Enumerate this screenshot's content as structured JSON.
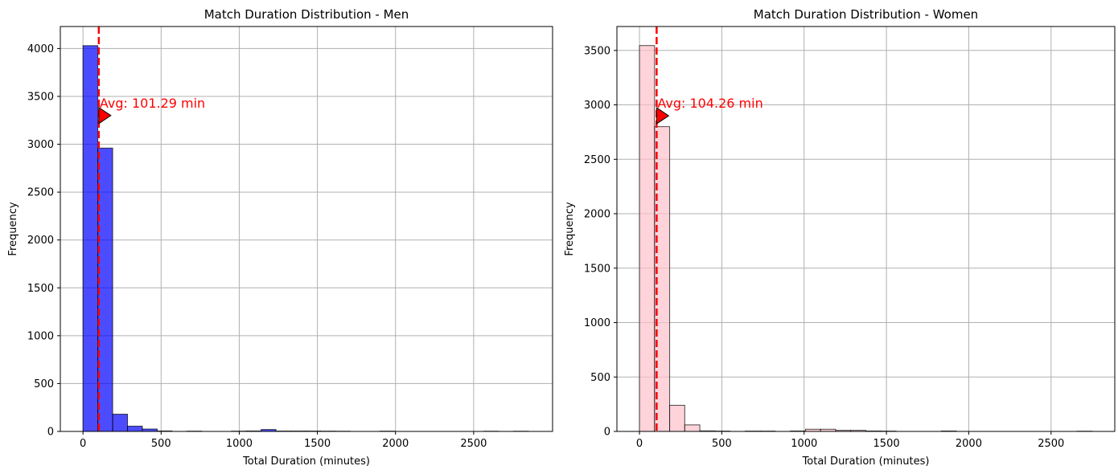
{
  "chart_data": [
    {
      "type": "bar",
      "title": "Match Duration Distribution - Men",
      "xlabel": "Total Duration (minutes)",
      "ylabel": "Frequency",
      "xlim": [
        -145,
        3005
      ],
      "ylim": [
        0,
        4230
      ],
      "xticks": [
        0,
        500,
        1000,
        1500,
        2000,
        2500
      ],
      "yticks": [
        0,
        500,
        1000,
        1500,
        2000,
        2500,
        3000,
        3500,
        4000
      ],
      "grid": true,
      "bar_color": "#0000ff",
      "bar_edge": "#000000",
      "bins": [
        {
          "x0": 0,
          "x1": 95,
          "count": 4030
        },
        {
          "x0": 95,
          "x1": 190,
          "count": 2960
        },
        {
          "x0": 190,
          "x1": 285,
          "count": 180
        },
        {
          "x0": 285,
          "x1": 380,
          "count": 55
        },
        {
          "x0": 380,
          "x1": 475,
          "count": 25
        },
        {
          "x0": 475,
          "x1": 570,
          "count": 5
        },
        {
          "x0": 570,
          "x1": 665,
          "count": 0
        },
        {
          "x0": 665,
          "x1": 760,
          "count": 3
        },
        {
          "x0": 760,
          "x1": 855,
          "count": 0
        },
        {
          "x0": 855,
          "x1": 950,
          "count": 0
        },
        {
          "x0": 950,
          "x1": 1045,
          "count": 3
        },
        {
          "x0": 1045,
          "x1": 1140,
          "count": 5
        },
        {
          "x0": 1140,
          "x1": 1235,
          "count": 20
        },
        {
          "x0": 1235,
          "x1": 1330,
          "count": 4
        },
        {
          "x0": 1330,
          "x1": 1425,
          "count": 4
        },
        {
          "x0": 1425,
          "x1": 1520,
          "count": 4
        },
        {
          "x0": 1520,
          "x1": 1615,
          "count": 3
        },
        {
          "x0": 1615,
          "x1": 1710,
          "count": 2
        },
        {
          "x0": 1710,
          "x1": 1805,
          "count": 0
        },
        {
          "x0": 1805,
          "x1": 1900,
          "count": 0
        },
        {
          "x0": 1900,
          "x1": 1995,
          "count": 3
        },
        {
          "x0": 1995,
          "x1": 2090,
          "count": 0
        },
        {
          "x0": 2090,
          "x1": 2185,
          "count": 0
        },
        {
          "x0": 2185,
          "x1": 2280,
          "count": 0
        },
        {
          "x0": 2280,
          "x1": 2375,
          "count": 0
        },
        {
          "x0": 2375,
          "x1": 2470,
          "count": 0
        },
        {
          "x0": 2470,
          "x1": 2565,
          "count": 0
        },
        {
          "x0": 2565,
          "x1": 2660,
          "count": 2
        },
        {
          "x0": 2660,
          "x1": 2755,
          "count": 0
        },
        {
          "x0": 2755,
          "x1": 2850,
          "count": 2
        }
      ],
      "avg_line": {
        "x": 101.29,
        "color": "#ff0000"
      },
      "annotation": {
        "text": "Avg: 101.29 min",
        "x": 101.29,
        "y": 3300,
        "color": "#ff0000"
      }
    },
    {
      "type": "bar",
      "title": "Match Duration Distribution - Women",
      "xlabel": "Total Duration (minutes)",
      "ylabel": "Frequency",
      "xlim": [
        -137,
        2887
      ],
      "ylim": [
        0,
        3720
      ],
      "xticks": [
        0,
        500,
        1000,
        1500,
        2000,
        2500
      ],
      "yticks": [
        0,
        500,
        1000,
        1500,
        2000,
        2500,
        3000,
        3500
      ],
      "grid": true,
      "bar_color": "#ffc0cb",
      "bar_edge": "#000000",
      "bins": [
        {
          "x0": 0,
          "x1": 91.7,
          "count": 3545
        },
        {
          "x0": 91.7,
          "x1": 183.3,
          "count": 2800
        },
        {
          "x0": 183.3,
          "x1": 275,
          "count": 240
        },
        {
          "x0": 275,
          "x1": 366.7,
          "count": 60
        },
        {
          "x0": 366.7,
          "x1": 458.3,
          "count": 5
        },
        {
          "x0": 458.3,
          "x1": 550,
          "count": 3
        },
        {
          "x0": 550,
          "x1": 641.7,
          "count": 0
        },
        {
          "x0": 641.7,
          "x1": 733.3,
          "count": 3
        },
        {
          "x0": 733.3,
          "x1": 825,
          "count": 3
        },
        {
          "x0": 825,
          "x1": 916.7,
          "count": 0
        },
        {
          "x0": 916.7,
          "x1": 1008.3,
          "count": 4
        },
        {
          "x0": 1008.3,
          "x1": 1100,
          "count": 20
        },
        {
          "x0": 1100,
          "x1": 1191.7,
          "count": 20
        },
        {
          "x0": 1191.7,
          "x1": 1283.3,
          "count": 10
        },
        {
          "x0": 1283.3,
          "x1": 1375,
          "count": 10
        },
        {
          "x0": 1375,
          "x1": 1466.7,
          "count": 4
        },
        {
          "x0": 1466.7,
          "x1": 1558.3,
          "count": 3
        },
        {
          "x0": 1558.3,
          "x1": 1650,
          "count": 0
        },
        {
          "x0": 1650,
          "x1": 1741.7,
          "count": 0
        },
        {
          "x0": 1741.7,
          "x1": 1833.3,
          "count": 0
        },
        {
          "x0": 1833.3,
          "x1": 1925,
          "count": 4
        },
        {
          "x0": 1925,
          "x1": 2016.7,
          "count": 0
        },
        {
          "x0": 2016.7,
          "x1": 2108.3,
          "count": 0
        },
        {
          "x0": 2108.3,
          "x1": 2200,
          "count": 0
        },
        {
          "x0": 2200,
          "x1": 2291.7,
          "count": 0
        },
        {
          "x0": 2291.7,
          "x1": 2383.3,
          "count": 0
        },
        {
          "x0": 2383.3,
          "x1": 2475,
          "count": 0
        },
        {
          "x0": 2475,
          "x1": 2566.7,
          "count": 0
        },
        {
          "x0": 2566.7,
          "x1": 2658.3,
          "count": 0
        },
        {
          "x0": 2658.3,
          "x1": 2750,
          "count": 2
        }
      ],
      "avg_line": {
        "x": 104.26,
        "color": "#ff0000"
      },
      "annotation": {
        "text": "Avg: 104.26 min",
        "x": 104.26,
        "y": 2900,
        "color": "#ff0000"
      }
    }
  ]
}
